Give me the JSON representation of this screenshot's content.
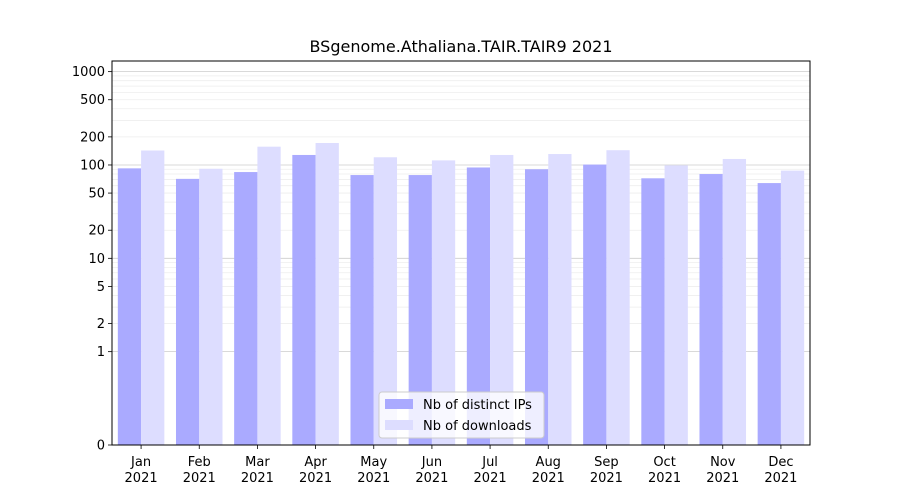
{
  "chart_data": {
    "type": "bar",
    "title": "BSgenome.Athaliana.TAIR.TAIR9 2021",
    "xlabel": "",
    "ylabel": "",
    "y_scale": "symlog",
    "ylim": [
      0,
      1300
    ],
    "y_ticks": [
      0,
      1,
      2,
      5,
      10,
      20,
      50,
      100,
      200,
      500,
      1000
    ],
    "y_tick_labels": [
      "0",
      "1",
      "2",
      "5",
      "10",
      "20",
      "50",
      "100",
      "200",
      "500",
      "1000"
    ],
    "categories": [
      {
        "month": "Jan",
        "year": "2021"
      },
      {
        "month": "Feb",
        "year": "2021"
      },
      {
        "month": "Mar",
        "year": "2021"
      },
      {
        "month": "Apr",
        "year": "2021"
      },
      {
        "month": "May",
        "year": "2021"
      },
      {
        "month": "Jun",
        "year": "2021"
      },
      {
        "month": "Jul",
        "year": "2021"
      },
      {
        "month": "Aug",
        "year": "2021"
      },
      {
        "month": "Sep",
        "year": "2021"
      },
      {
        "month": "Oct",
        "year": "2021"
      },
      {
        "month": "Nov",
        "year": "2021"
      },
      {
        "month": "Dec",
        "year": "2021"
      }
    ],
    "series": [
      {
        "name": "Nb of distinct IPs",
        "color": "#aaaaff",
        "values": [
          92,
          71,
          84,
          128,
          78,
          78,
          94,
          90,
          101,
          72,
          80,
          64
        ]
      },
      {
        "name": "Nb of downloads",
        "color": "#ddddff",
        "values": [
          143,
          91,
          157,
          172,
          121,
          112,
          128,
          131,
          144,
          99,
          116,
          87
        ]
      }
    ],
    "legend_position": "bottom-center",
    "grid": "horizontal"
  }
}
